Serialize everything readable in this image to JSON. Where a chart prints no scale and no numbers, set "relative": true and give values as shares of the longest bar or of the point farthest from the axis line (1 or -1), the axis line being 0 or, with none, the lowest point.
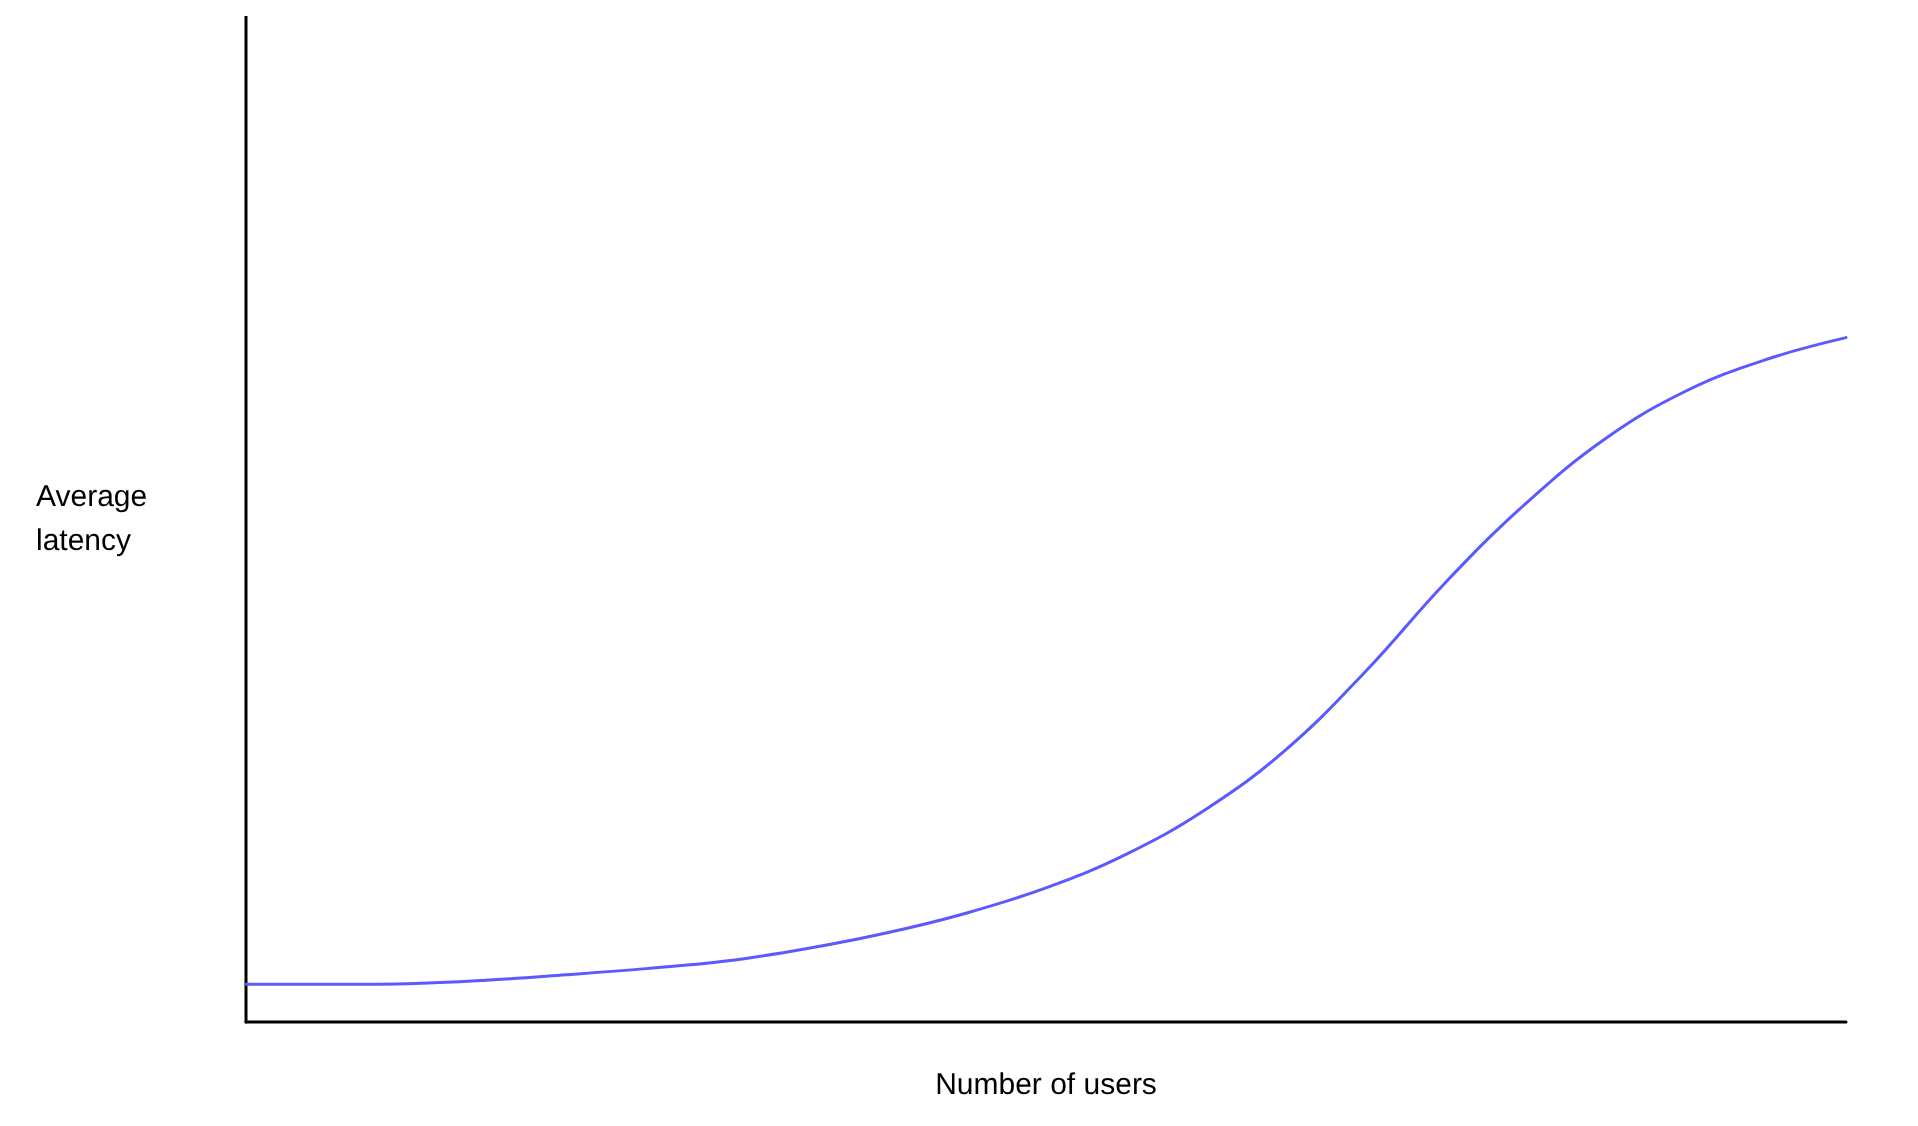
{
  "chart_data": {
    "type": "line",
    "relative": true,
    "xlabel": "Number of users",
    "ylabel": "Average latency",
    "categories": [
      null,
      null,
      null,
      null,
      null,
      null,
      null,
      null,
      null,
      null,
      null,
      null,
      null,
      null,
      null,
      null,
      null,
      null,
      null,
      null,
      null
    ],
    "series": [
      {
        "color": "#5a5aff",
        "values": [
          0.055,
          0.055,
          0.056,
          0.061,
          0.069,
          0.078,
          0.089,
          0.107,
          0.13,
          0.159,
          0.196,
          0.245,
          0.311,
          0.398,
          0.513,
          0.643,
          0.758,
          0.853,
          0.922,
          0.968,
          1
        ]
      }
    ],
    "marker": "none",
    "line_style": "solid",
    "grid": false
  }
}
